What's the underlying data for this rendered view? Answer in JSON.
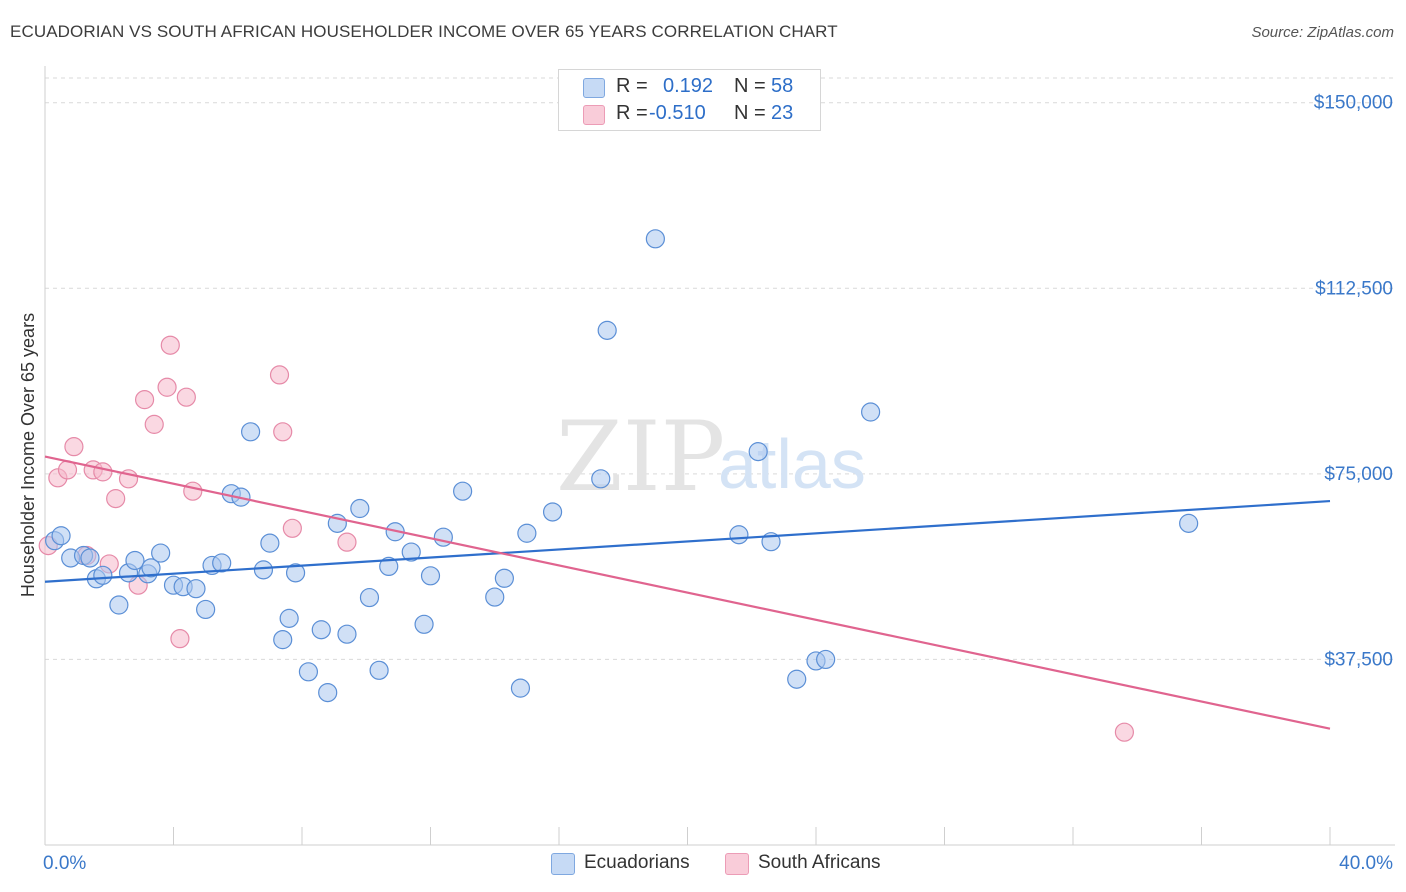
{
  "header": {
    "title": "ECUADORIAN VS SOUTH AFRICAN HOUSEHOLDER INCOME OVER 65 YEARS CORRELATION CHART",
    "source": "Source: ZipAtlas.com"
  },
  "legend_top": {
    "rows": [
      {
        "r_label": "R =",
        "r_value": "0.192",
        "n_label": "N =",
        "n_value": "58"
      },
      {
        "r_label": "R =",
        "r_value": "-0.510",
        "n_label": "N =",
        "n_value": "23"
      }
    ]
  },
  "watermark": {
    "zip": "ZIP",
    "atlas": "atlas"
  },
  "colors": {
    "blue_fill": "#a9c7ef",
    "blue_stroke": "#5b8fd6",
    "blue_line": "#2f6fcc",
    "pink_fill": "#f5b8ca",
    "pink_stroke": "#e68aa8",
    "pink_line": "#e0648f",
    "tick_label": "#3a78c9",
    "grid": "#d9d9d9"
  },
  "chart_data": {
    "type": "scatter",
    "title": "ECUADORIAN VS SOUTH AFRICAN HOUSEHOLDER INCOME OVER 65 YEARS CORRELATION CHART",
    "xlabel": "",
    "ylabel": "Householder Income Over 65 years",
    "xlim": [
      0,
      40
    ],
    "ylim": [
      0,
      155000
    ],
    "x_tick_labels": [
      "0.0%",
      "40.0%"
    ],
    "y_ticks": [
      37500,
      75000,
      112500,
      150000
    ],
    "y_tick_labels": [
      "$37,500",
      "$75,000",
      "$112,500",
      "$150,000"
    ],
    "grid": "horizontal dashed",
    "legend_position": "bottom-center",
    "series": [
      {
        "name": "Ecuadorians",
        "color": "#a9c7ef",
        "points": [
          [
            0.3,
            61500
          ],
          [
            0.5,
            62500
          ],
          [
            0.8,
            58000
          ],
          [
            1.2,
            58500
          ],
          [
            1.4,
            58000
          ],
          [
            1.6,
            53800
          ],
          [
            1.8,
            54500
          ],
          [
            2.3,
            48500
          ],
          [
            2.6,
            55000
          ],
          [
            2.8,
            57500
          ],
          [
            3.2,
            54800
          ],
          [
            3.3,
            56000
          ],
          [
            3.6,
            59000
          ],
          [
            4.0,
            52500
          ],
          [
            4.3,
            52200
          ],
          [
            4.7,
            51800
          ],
          [
            5.0,
            47600
          ],
          [
            5.2,
            56500
          ],
          [
            5.5,
            57000
          ],
          [
            5.8,
            71000
          ],
          [
            6.1,
            70300
          ],
          [
            6.4,
            83500
          ],
          [
            6.8,
            55600
          ],
          [
            7.0,
            61000
          ],
          [
            7.4,
            41500
          ],
          [
            7.6,
            45800
          ],
          [
            7.8,
            55000
          ],
          [
            8.2,
            35000
          ],
          [
            8.6,
            43500
          ],
          [
            8.8,
            30800
          ],
          [
            9.1,
            65000
          ],
          [
            9.4,
            42600
          ],
          [
            9.8,
            68000
          ],
          [
            10.1,
            50000
          ],
          [
            10.4,
            35300
          ],
          [
            10.7,
            56300
          ],
          [
            10.9,
            63300
          ],
          [
            11.4,
            59200
          ],
          [
            11.8,
            44600
          ],
          [
            12.0,
            54400
          ],
          [
            12.4,
            62200
          ],
          [
            13.0,
            71500
          ],
          [
            14.0,
            50100
          ],
          [
            14.3,
            53900
          ],
          [
            14.8,
            31700
          ],
          [
            15.0,
            63000
          ],
          [
            15.8,
            67300
          ],
          [
            17.3,
            74000
          ],
          [
            17.5,
            104000
          ],
          [
            19.0,
            122500
          ],
          [
            21.6,
            62700
          ],
          [
            22.2,
            79500
          ],
          [
            22.6,
            61300
          ],
          [
            23.4,
            33500
          ],
          [
            24.0,
            37200
          ],
          [
            24.3,
            37500
          ],
          [
            25.7,
            87500
          ],
          [
            35.6,
            65000
          ]
        ]
      },
      {
        "name": "South Africans",
        "color": "#f5b8ca",
        "points": [
          [
            0.1,
            60500
          ],
          [
            0.4,
            74200
          ],
          [
            0.7,
            75800
          ],
          [
            0.9,
            80500
          ],
          [
            1.3,
            58500
          ],
          [
            1.5,
            75800
          ],
          [
            1.8,
            75400
          ],
          [
            2.0,
            56800
          ],
          [
            2.2,
            70000
          ],
          [
            2.6,
            74000
          ],
          [
            2.9,
            52500
          ],
          [
            3.1,
            90000
          ],
          [
            3.4,
            85000
          ],
          [
            3.8,
            92500
          ],
          [
            3.9,
            101000
          ],
          [
            4.2,
            41700
          ],
          [
            4.4,
            90500
          ],
          [
            4.6,
            71500
          ],
          [
            7.3,
            95000
          ],
          [
            7.4,
            83500
          ],
          [
            7.7,
            64000
          ],
          [
            9.4,
            61200
          ],
          [
            33.6,
            22800
          ]
        ]
      }
    ],
    "trend_lines": [
      {
        "series": "Ecuadorians",
        "x": [
          0,
          40
        ],
        "y": [
          53200,
          69500
        ]
      },
      {
        "series": "South Africans",
        "x": [
          0,
          40
        ],
        "y": [
          78500,
          23500
        ]
      }
    ]
  },
  "bottom_legend": {
    "items": [
      {
        "label": "Ecuadorians"
      },
      {
        "label": "South Africans"
      }
    ]
  }
}
